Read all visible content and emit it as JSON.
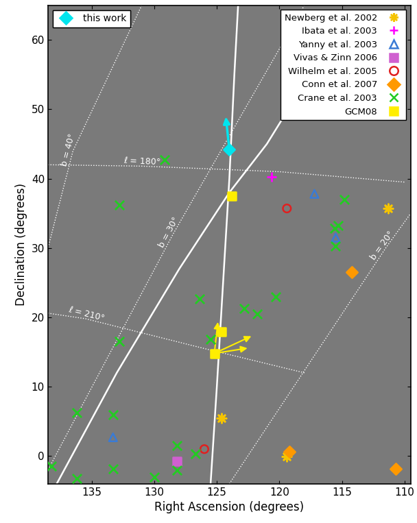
{
  "chart_data": {
    "type": "scatter",
    "x_label": "Right Ascension (degrees)",
    "y_label": "Declination (degrees)",
    "xlim": [
      138.5,
      109.5
    ],
    "xticks": [
      135,
      130,
      125,
      120,
      115,
      110
    ],
    "ylim": [
      -4,
      65
    ],
    "yticks": [
      0,
      10,
      20,
      30,
      40,
      50,
      60
    ],
    "legend": "upper right",
    "series": [
      {
        "name": "this work",
        "color": "#00e5ee",
        "marker": "diamond",
        "legend": "upper left",
        "x": [
          124.0
        ],
        "y": [
          44.2
        ],
        "vectors": [
          [
            124.0,
            44.2,
            124.3,
            49.2
          ]
        ]
      },
      {
        "name": "Newberg et al. 2002",
        "color": "#f5c400",
        "marker": "asterisk",
        "x": [
          111.3,
          124.6,
          119.4
        ],
        "y": [
          35.7,
          5.5,
          -0.1
        ]
      },
      {
        "name": "Ibata et al. 2003",
        "color": "#ff00ff",
        "marker": "plus",
        "x": [
          120.6
        ],
        "y": [
          40.3
        ]
      },
      {
        "name": "Yanny et al. 2003",
        "color": "#3a7bd5",
        "marker": "triangle",
        "x": [
          117.2,
          115.5,
          133.3
        ],
        "y": [
          37.8,
          31.5,
          2.7
        ]
      },
      {
        "name": "Vivas & Zinn 2006",
        "color": "#d060d0",
        "marker": "square",
        "x": [
          128.2
        ],
        "y": [
          -0.8
        ]
      },
      {
        "name": "Wilhelm et al. 2005",
        "color": "#e02020",
        "marker": "circle",
        "x": [
          119.4,
          126.0
        ],
        "y": [
          35.7,
          1.0
        ]
      },
      {
        "name": "Conn et al. 2007",
        "color": "#ff9900",
        "marker": "diamond",
        "x": [
          114.2,
          119.2,
          110.7
        ],
        "y": [
          26.5,
          0.6,
          -1.8
        ]
      },
      {
        "name": "Crane et al. 2003",
        "color": "#22cc22",
        "marker": "x",
        "x": [
          129.2,
          132.8,
          132.8,
          126.4,
          125.5,
          122.8,
          121.8,
          120.3,
          114.8,
          115.3,
          115.6,
          115.5,
          136.2,
          133.3,
          138.2,
          136.2,
          133.3,
          130.0,
          128.2,
          128.2,
          126.7
        ],
        "y": [
          42.7,
          36.2,
          16.5,
          22.7,
          16.8,
          21.3,
          20.5,
          23.0,
          37.0,
          33.2,
          32.8,
          30.3,
          6.3,
          6.0,
          -1.5,
          -3.2,
          -1.8,
          -3.0,
          1.5,
          -2.0,
          0.3
        ]
      },
      {
        "name": "GCM08",
        "color": "#ffee00",
        "marker": "square",
        "x": [
          123.8,
          125.2,
          124.6
        ],
        "y": [
          37.5,
          14.8,
          17.9
        ],
        "vectors": [
          [
            125.2,
            14.8,
            124.9,
            19.6
          ],
          [
            125.2,
            14.8,
            122.1,
            17.4
          ],
          [
            125.2,
            14.8,
            122.4,
            15.6
          ],
          [
            124.6,
            17.9,
            124.2,
            18.6
          ]
        ]
      }
    ],
    "lines": [
      {
        "color": "white",
        "line_style": "solid",
        "x": [
          125.5,
          125.0,
          124.5,
          124.0,
          123.6,
          123.3
        ],
        "y": [
          -4,
          10,
          25,
          40,
          55,
          65
        ]
      },
      {
        "color": "white",
        "line_style": "solid",
        "x": [
          137.8,
          133.0,
          128.0,
          124.0,
          121.0,
          118.6
        ],
        "y": [
          -4,
          12,
          27,
          38,
          45,
          52
        ]
      },
      {
        "color": "white",
        "line_style": "dotted",
        "label": "ℓ = 180°",
        "x": [
          138.5,
          131.0,
          120.0,
          110.0
        ],
        "y": [
          42.0,
          41.8,
          41.0,
          39.5
        ]
      },
      {
        "color": "white",
        "line_style": "dotted",
        "label": "ℓ = 210°",
        "x": [
          138.5,
          135.5,
          126.0,
          118.0
        ],
        "y": [
          20.6,
          19.8,
          15.5,
          12.0
        ]
      },
      {
        "color": "white",
        "line_style": "dotted",
        "label": "b = 40°",
        "x": [
          131.0,
          136.5,
          138.5
        ],
        "y": [
          65,
          44,
          30
        ]
      },
      {
        "color": "white",
        "line_style": "dotted",
        "label": "b = 30°",
        "x": [
          118.0,
          128.5,
          138.5
        ],
        "y": [
          65,
          32,
          -2
        ]
      },
      {
        "color": "white",
        "line_style": "dotted",
        "label": "b = 20°",
        "x": [
          124.0,
          111.5,
          109.5
        ],
        "y": [
          -4,
          30,
          35
        ]
      }
    ]
  }
}
